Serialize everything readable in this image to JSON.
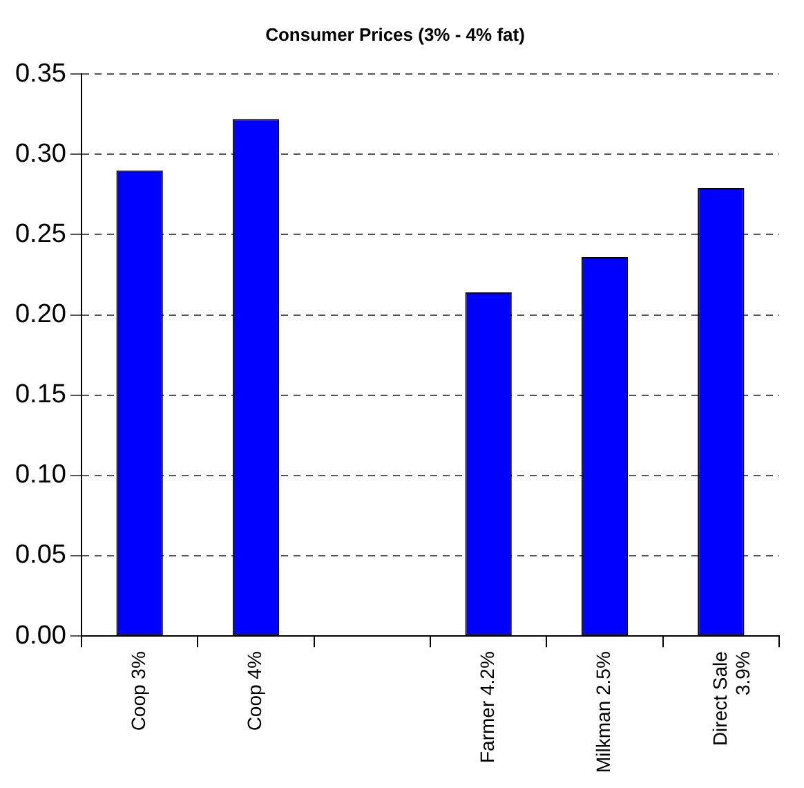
{
  "chart_data": {
    "type": "bar",
    "title": "Consumer Prices (3% - 4% fat)",
    "categories": [
      "Coop 3%",
      "Coop 4%",
      null,
      "Farmer 4.2%",
      "Milkman 2.5%",
      "Direct Sale 3.9%"
    ],
    "values": [
      0.29,
      0.322,
      null,
      0.214,
      0.236,
      0.279
    ],
    "color": "#0000ff",
    "ylim": [
      0,
      0.35
    ],
    "yticks": [
      {
        "value": 0,
        "label": "0.00"
      },
      {
        "value": 0.05,
        "label": "0.05"
      },
      {
        "value": 0.1,
        "label": "0.10"
      },
      {
        "value": 0.15,
        "label": "0.15"
      },
      {
        "value": 0.2,
        "label": "0.20"
      },
      {
        "value": 0.25,
        "label": "0.25"
      },
      {
        "value": 0.3,
        "label": "0.30"
      },
      {
        "value": 0.35,
        "label": "0.35"
      }
    ],
    "grid": "y"
  }
}
